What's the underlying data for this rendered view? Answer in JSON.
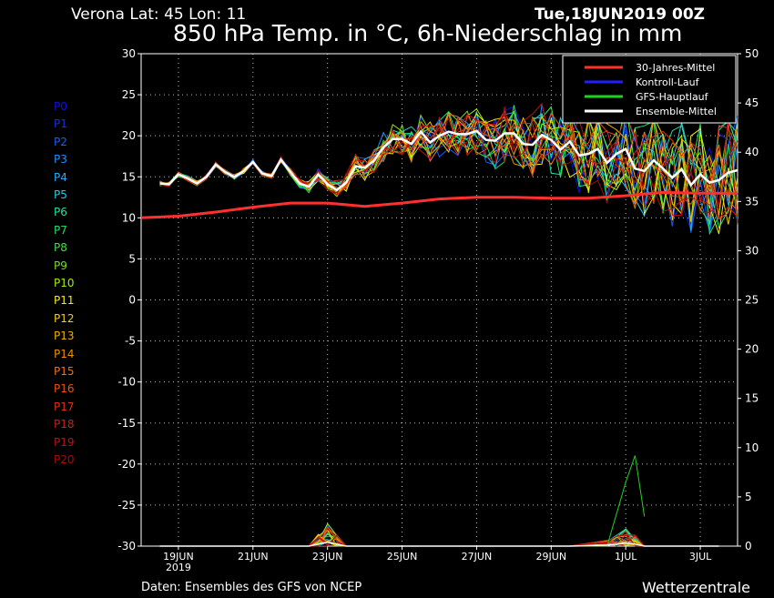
{
  "header": {
    "location": "Verona   Lat: 45 Lon: 11",
    "run": "Tue,18JUN2019 00Z",
    "title": "850 hPa Temp. in °C, 6h-Niederschlag in mm"
  },
  "footer": {
    "source": "Daten: Ensembles des GFS von NCEP",
    "brand": "Wetterzentrale"
  },
  "members": [
    {
      "label": "P0",
      "color": "#1010e0"
    },
    {
      "label": "P1",
      "color": "#1030f0"
    },
    {
      "label": "P2",
      "color": "#1060ff"
    },
    {
      "label": "P3",
      "color": "#2090ff"
    },
    {
      "label": "P4",
      "color": "#20b0ff"
    },
    {
      "label": "P5",
      "color": "#20d0e0"
    },
    {
      "label": "P6",
      "color": "#20e0a0"
    },
    {
      "label": "P7",
      "color": "#20e060"
    },
    {
      "label": "P8",
      "color": "#40e040"
    },
    {
      "label": "P9",
      "color": "#70e020"
    },
    {
      "label": "P10",
      "color": "#a0f010"
    },
    {
      "label": "P11",
      "color": "#f0f000"
    },
    {
      "label": "P12",
      "color": "#f0d000"
    },
    {
      "label": "P13",
      "color": "#f0b000"
    },
    {
      "label": "P14",
      "color": "#f09000"
    },
    {
      "label": "P15",
      "color": "#f07010"
    },
    {
      "label": "P16",
      "color": "#f05010"
    },
    {
      "label": "P17",
      "color": "#e03010"
    },
    {
      "label": "P18",
      "color": "#d02010"
    },
    {
      "label": "P19",
      "color": "#c01010"
    },
    {
      "label": "P20",
      "color": "#b00808"
    }
  ],
  "chart_data": {
    "type": "line",
    "title": "850 hPa Temp. in °C, 6h-Niederschlag in mm",
    "x_range": [
      0,
      16
    ],
    "x_ticks": [
      {
        "x": 1,
        "label": "19JUN",
        "sub": "2019"
      },
      {
        "x": 3,
        "label": "21JUN"
      },
      {
        "x": 5,
        "label": "23JUN"
      },
      {
        "x": 7,
        "label": "25JUN"
      },
      {
        "x": 9,
        "label": "27JUN"
      },
      {
        "x": 11,
        "label": "29JUN"
      },
      {
        "x": 13,
        "label": "1JUL"
      },
      {
        "x": 15,
        "label": "3JUL"
      }
    ],
    "y_left": {
      "min": -30,
      "max": 30,
      "ticks": [
        30,
        25,
        20,
        15,
        10,
        5,
        0,
        -5,
        -10,
        -15,
        -20,
        -25,
        -30
      ]
    },
    "y_right": {
      "min": 0,
      "max": 50,
      "ticks": [
        50,
        45,
        40,
        35,
        30,
        25,
        20,
        15,
        10,
        5,
        0
      ]
    },
    "grid": true,
    "legend_position": "top-right",
    "legend": [
      {
        "label": "30-Jahres-Mittel",
        "color": "#ff3030"
      },
      {
        "label": "Kontroll-Lauf",
        "color": "#2020ff"
      },
      {
        "label": "GFS-Hauptlauf",
        "color": "#20d020"
      },
      {
        "label": "Ensemble-Mittel",
        "color": "#ffffff"
      }
    ],
    "climate_mean": {
      "x": [
        0,
        1,
        2,
        3,
        4,
        5,
        6,
        7,
        8,
        9,
        10,
        11,
        12,
        13,
        14,
        15,
        16
      ],
      "y": [
        10.0,
        10.2,
        10.7,
        11.3,
        11.8,
        11.8,
        11.4,
        11.8,
        12.3,
        12.5,
        12.5,
        12.4,
        12.4,
        12.7,
        13.1,
        13.0,
        13.0
      ]
    },
    "ensemble_mean": {
      "x": [
        0.5,
        0.75,
        1,
        1.25,
        1.5,
        1.75,
        2,
        2.25,
        2.5,
        2.75,
        3,
        3.25,
        3.5,
        3.75,
        4,
        4.25,
        4.5,
        4.75,
        5,
        5.25,
        5.5,
        5.75,
        6,
        6.25,
        6.5,
        6.75,
        7,
        7.25,
        7.5,
        7.75,
        8,
        8.25,
        8.5,
        8.75,
        9,
        9.25,
        9.5,
        9.75,
        10,
        10.25,
        10.5,
        10.75,
        11,
        11.25,
        11.5,
        11.75,
        12,
        12.25,
        12.5,
        12.75,
        13,
        13.25,
        13.5,
        13.75,
        14,
        14.25,
        14.5,
        14.75,
        15,
        15.25,
        15.5,
        15.75,
        16
      ],
      "y": [
        14.2,
        14.1,
        15.3,
        14.8,
        14.2,
        15.0,
        16.5,
        15.6,
        15.0,
        15.7,
        16.8,
        15.4,
        15.1,
        17.1,
        15.6,
        14.2,
        13.8,
        15.3,
        14.1,
        13.4,
        14.3,
        16.3,
        16.1,
        17.0,
        18.6,
        19.6,
        19.6,
        19.0,
        20.5,
        19.2,
        20.0,
        20.5,
        20.2,
        20.2,
        20.6,
        19.5,
        19.4,
        20.3,
        20.3,
        19.0,
        18.9,
        20.1,
        19.5,
        18.3,
        19.3,
        17.6,
        17.8,
        18.4,
        16.7,
        17.8,
        18.4,
        16.0,
        15.7,
        17.0,
        16.0,
        14.9,
        15.9,
        14.0,
        15.3,
        14.3,
        14.6,
        15.5,
        15.8
      ]
    },
    "precip_mean_mm": {
      "x": [
        0.5,
        1.5,
        2.5,
        3.5,
        4.5,
        4.75,
        5.0,
        5.25,
        5.5,
        6.5,
        7.5,
        8.5,
        9.5,
        10.5,
        11.5,
        12.5,
        12.75,
        13.0,
        13.25,
        13.5,
        14.5,
        15.5
      ],
      "y": [
        0,
        0,
        0,
        0,
        0,
        0.2,
        0.4,
        0.2,
        0,
        0,
        0,
        0,
        0,
        0,
        0,
        0.1,
        0.2,
        0.3,
        0.2,
        0,
        0,
        0
      ]
    },
    "precip_gfs_peak_mm": {
      "x": [
        12.5,
        13.0,
        13.25,
        13.5
      ],
      "y": [
        0,
        6.5,
        9.2,
        3.0
      ]
    }
  }
}
